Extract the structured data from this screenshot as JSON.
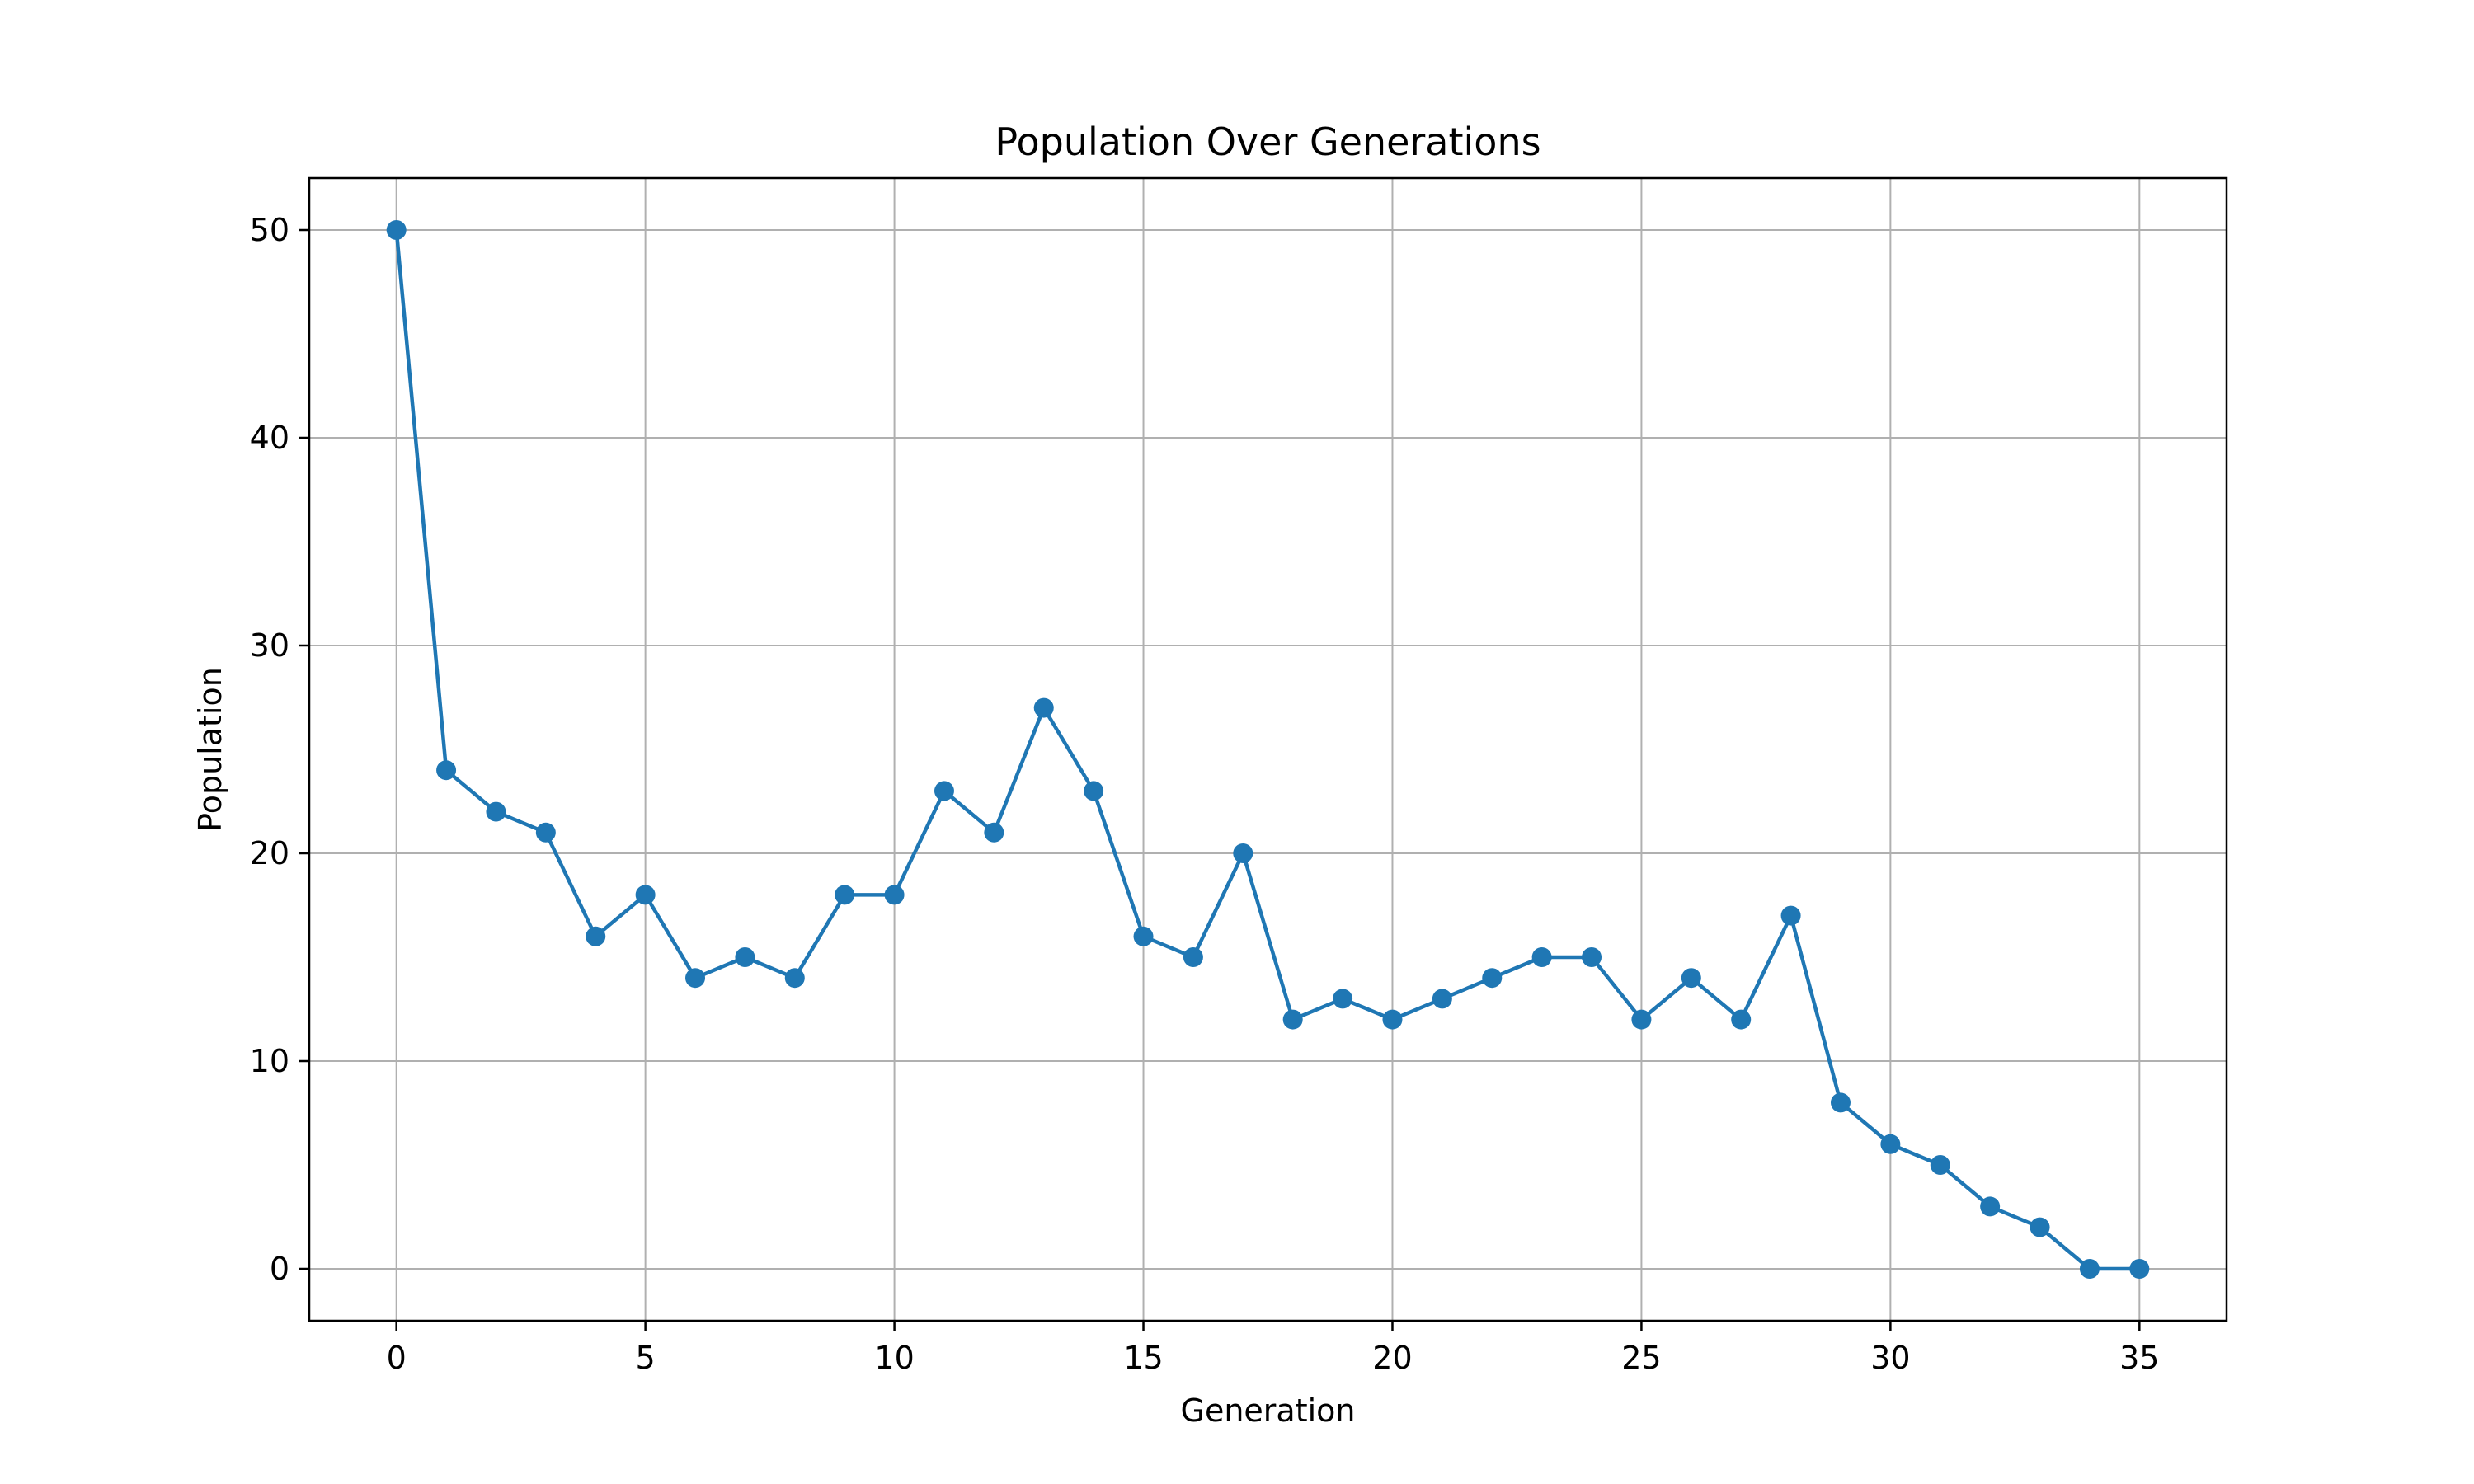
{
  "chart_data": {
    "type": "line",
    "title": "Population Over Generations",
    "xlabel": "Generation",
    "ylabel": "Population",
    "xlim": [
      -1.75,
      36.75
    ],
    "ylim": [
      -2.5,
      52.5
    ],
    "xticks": [
      0,
      5,
      10,
      15,
      20,
      25,
      30,
      35
    ],
    "yticks": [
      0,
      10,
      20,
      30,
      40,
      50
    ],
    "grid": true,
    "series": [
      {
        "color": "#1f77b4",
        "marker": "circle",
        "x": [
          0,
          1,
          2,
          3,
          4,
          5,
          6,
          7,
          8,
          9,
          10,
          11,
          12,
          13,
          14,
          15,
          16,
          17,
          18,
          19,
          20,
          21,
          22,
          23,
          24,
          25,
          26,
          27,
          28,
          29,
          30,
          31,
          32,
          33,
          34,
          35
        ],
        "y": [
          50,
          24,
          22,
          21,
          16,
          18,
          14,
          15,
          14,
          18,
          18,
          23,
          21,
          27,
          23,
          16,
          15,
          20,
          12,
          13,
          12,
          13,
          14,
          15,
          15,
          12,
          14,
          12,
          17,
          8,
          6,
          5,
          3,
          2,
          0,
          0
        ]
      }
    ]
  }
}
